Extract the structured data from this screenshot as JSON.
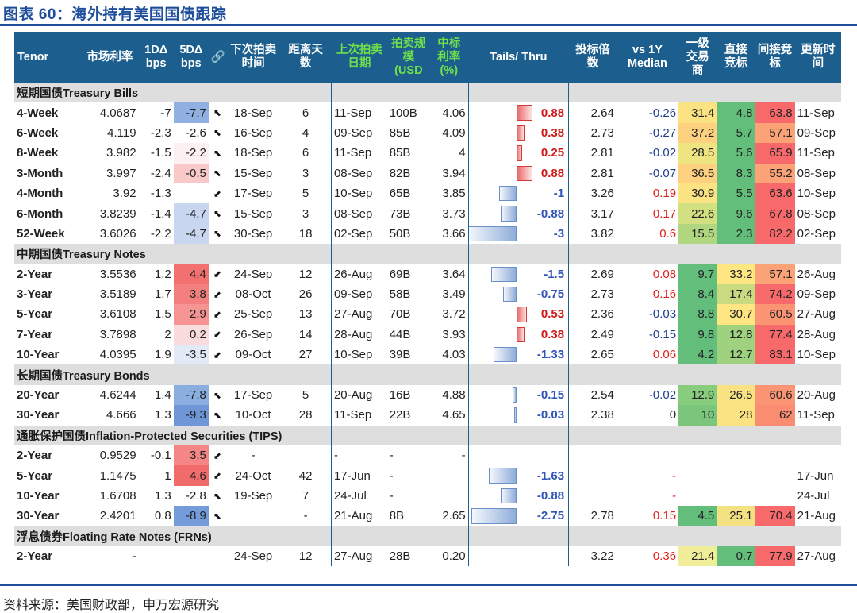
{
  "title": "图表 60：海外持有美国国债跟踪",
  "source": "资料来源：美国财政部，申万宏源研究",
  "headers": {
    "tenor": "Tenor",
    "rate": "市场利率",
    "d1": "1DΔ bps",
    "d5": "5DΔ bps",
    "link": "🔗",
    "next": "下次拍卖时间",
    "days": "距离天数",
    "last": "上次拍卖日期",
    "size": "拍卖规模(USD",
    "bid": "中标利率(%)",
    "tails": "Tails/ Thru",
    "btc": "投标倍数",
    "vs1y": "vs 1Y Median",
    "primary": "一级交易商",
    "direct": "直接竞标",
    "indirect": "间接竞标",
    "updated": "更新时间"
  },
  "sections": [
    {
      "label": "短期国债Treasury Bills",
      "rows": [
        {
          "tenor": "4-Week",
          "rate": "4.0687",
          "d1": "-7",
          "d5": "-7.7",
          "d5c": "#8fb0e0",
          "arrow": "⬉",
          "next": "18-Sep",
          "days": "6",
          "last": "11-Sep",
          "size": "100B",
          "bid": "4.06",
          "tail": "0.88",
          "tailv": 0.88,
          "btc": "2.64",
          "vs1y": "-0.26",
          "vs1yc": "blue",
          "p": "31.4",
          "pc": "#fbe283",
          "dr": "4.8",
          "dc": "#63be7b",
          "ind": "63.8",
          "ic": "#f8696b",
          "upd": "11-Sep"
        },
        {
          "tenor": "6-Week",
          "rate": "4.119",
          "d1": "-2.3",
          "d5": "-2.6",
          "d5c": "#ffffff",
          "arrow": "⬉",
          "next": "16-Sep",
          "days": "4",
          "last": "09-Sep",
          "size": "85B",
          "bid": "4.09",
          "tail": "0.38",
          "tailv": 0.38,
          "btc": "2.73",
          "vs1y": "-0.27",
          "vs1yc": "blue",
          "p": "37.2",
          "pc": "#fdd17f",
          "dr": "5.7",
          "dc": "#63be7b",
          "ind": "57.1",
          "ic": "#fba276",
          "upd": "09-Sep"
        },
        {
          "tenor": "8-Week",
          "rate": "3.982",
          "d1": "-1.5",
          "d5": "-2.2",
          "d5c": "#fdf0f0",
          "arrow": "⬉",
          "next": "18-Sep",
          "days": "6",
          "last": "11-Sep",
          "size": "85B",
          "bid": "4",
          "tail": "0.25",
          "tailv": 0.25,
          "btc": "2.81",
          "vs1y": "-0.02",
          "vs1yc": "blue",
          "p": "28.5",
          "pc": "#eee482",
          "dr": "5.6",
          "dc": "#63be7b",
          "ind": "65.9",
          "ic": "#f8696b",
          "upd": "11-Sep"
        },
        {
          "tenor": "3-Month",
          "rate": "3.997",
          "d1": "-2.4",
          "d5": "-0.5",
          "d5c": "#f9c9c9",
          "arrow": "⬉",
          "next": "15-Sep",
          "days": "3",
          "last": "08-Sep",
          "size": "82B",
          "bid": "3.94",
          "tail": "0.88",
          "tailv": 0.88,
          "btc": "2.81",
          "vs1y": "-0.07",
          "vs1yc": "blue",
          "p": "36.5",
          "pc": "#fdd17f",
          "dr": "8.3",
          "dc": "#63be7b",
          "ind": "55.2",
          "ic": "#fba276",
          "upd": "08-Sep"
        },
        {
          "tenor": "4-Month",
          "rate": "3.92",
          "d1": "-1.3",
          "d5": "",
          "d5c": "#ffffff",
          "arrow": "⬋",
          "next": "17-Sep",
          "days": "5",
          "last": "10-Sep",
          "size": "65B",
          "bid": "3.85",
          "tail": "-1",
          "tailv": -1,
          "btc": "3.26",
          "vs1y": "0.19",
          "vs1yc": "red",
          "p": "30.9",
          "pc": "#fbe283",
          "dr": "5.5",
          "dc": "#63be7b",
          "ind": "63.6",
          "ic": "#f8696b",
          "upd": "10-Sep"
        },
        {
          "tenor": "6-Month",
          "rate": "3.8239",
          "d1": "-1.4",
          "d5": "-4.7",
          "d5c": "#c8d7ef",
          "arrow": "⬉",
          "next": "15-Sep",
          "days": "3",
          "last": "08-Sep",
          "size": "73B",
          "bid": "3.73",
          "tail": "-0.88",
          "tailv": -0.88,
          "btc": "3.17",
          "vs1y": "0.17",
          "vs1yc": "red",
          "p": "22.6",
          "pc": "#d3e081",
          "dr": "9.6",
          "dc": "#63be7b",
          "ind": "67.8",
          "ic": "#f8696b",
          "upd": "08-Sep"
        },
        {
          "tenor": "52-Week",
          "rate": "3.6026",
          "d1": "-2.2",
          "d5": "-4.7",
          "d5c": "#c8d7ef",
          "arrow": "⬉",
          "next": "30-Sep",
          "days": "18",
          "last": "02-Sep",
          "size": "50B",
          "bid": "3.66",
          "tail": "-3",
          "tailv": -3,
          "btc": "3.82",
          "vs1y": "0.6",
          "vs1yc": "red",
          "p": "15.5",
          "pc": "#b0d67f",
          "dr": "2.3",
          "dc": "#63be7b",
          "ind": "82.2",
          "ic": "#f8696b",
          "upd": "02-Sep"
        }
      ]
    },
    {
      "label": "中期国债Treasury Notes",
      "rows": [
        {
          "tenor": "2-Year",
          "rate": "3.5536",
          "d1": "1.2",
          "d5": "4.4",
          "d5c": "#f27070",
          "arrow": "⬋",
          "next": "24-Sep",
          "days": "12",
          "last": "26-Aug",
          "size": "69B",
          "bid": "3.64",
          "tail": "-1.5",
          "tailv": -1.5,
          "btc": "2.69",
          "vs1y": "0.08",
          "vs1yc": "red",
          "p": "9.7",
          "pc": "#63be7b",
          "dr": "33.2",
          "dc": "#fee683",
          "ind": "57.1",
          "ic": "#fba276",
          "upd": "26-Aug"
        },
        {
          "tenor": "3-Year",
          "rate": "3.5189",
          "d1": "1.7",
          "d5": "3.8",
          "d5c": "#f47f7f",
          "arrow": "⬋",
          "next": "08-Oct",
          "days": "26",
          "last": "09-Sep",
          "size": "58B",
          "bid": "3.49",
          "tail": "-0.75",
          "tailv": -0.75,
          "btc": "2.73",
          "vs1y": "0.16",
          "vs1yc": "red",
          "p": "8.4",
          "pc": "#63be7b",
          "dr": "17.4",
          "dc": "#c9db80",
          "ind": "74.2",
          "ic": "#f8696b",
          "upd": "09-Sep"
        },
        {
          "tenor": "5-Year",
          "rate": "3.6108",
          "d1": "1.5",
          "d5": "2.9",
          "d5c": "#f69494",
          "arrow": "⬋",
          "next": "25-Sep",
          "days": "13",
          "last": "27-Aug",
          "size": "70B",
          "bid": "3.72",
          "tail": "0.53",
          "tailv": 0.53,
          "btc": "2.36",
          "vs1y": "-0.03",
          "vs1yc": "blue",
          "p": "8.8",
          "pc": "#63be7b",
          "dr": "30.7",
          "dc": "#fee683",
          "ind": "60.5",
          "ic": "#fa9473",
          "upd": "27-Aug"
        },
        {
          "tenor": "7-Year",
          "rate": "3.7898",
          "d1": "2",
          "d5": "0.2",
          "d5c": "#fbdcdc",
          "arrow": "⬋",
          "next": "26-Sep",
          "days": "14",
          "last": "28-Aug",
          "size": "44B",
          "bid": "3.93",
          "tail": "0.38",
          "tailv": 0.38,
          "btc": "2.49",
          "vs1y": "-0.15",
          "vs1yc": "blue",
          "p": "9.8",
          "pc": "#63be7b",
          "dr": "12.8",
          "dc": "#9fd27e",
          "ind": "77.4",
          "ic": "#f8696b",
          "upd": "28-Aug"
        },
        {
          "tenor": "10-Year",
          "rate": "4.0395",
          "d1": "1.9",
          "d5": "-3.5",
          "d5c": "#e3eaf7",
          "arrow": "⬋",
          "next": "09-Oct",
          "days": "27",
          "last": "10-Sep",
          "size": "39B",
          "bid": "4.03",
          "tail": "-1.33",
          "tailv": -1.33,
          "btc": "2.65",
          "vs1y": "0.06",
          "vs1yc": "red",
          "p": "4.2",
          "pc": "#63be7b",
          "dr": "12.7",
          "dc": "#9fd27e",
          "ind": "83.1",
          "ic": "#f8696b",
          "upd": "10-Sep"
        }
      ]
    },
    {
      "label": "长期国债Treasury Bonds",
      "rows": [
        {
          "tenor": "20-Year",
          "rate": "4.6244",
          "d1": "1.4",
          "d5": "-7.8",
          "d5c": "#8aaee0",
          "arrow": "⬉",
          "next": "17-Sep",
          "days": "5",
          "last": "20-Aug",
          "size": "16B",
          "bid": "4.88",
          "tail": "-0.15",
          "tailv": -0.15,
          "btc": "2.54",
          "vs1y": "-0.02",
          "vs1yc": "blue",
          "p": "12.9",
          "pc": "#88cc7d",
          "dr": "26.5",
          "dc": "#f8e282",
          "ind": "60.6",
          "ic": "#fa9473",
          "upd": "20-Aug"
        },
        {
          "tenor": "30-Year",
          "rate": "4.666",
          "d1": "1.3",
          "d5": "-9.3",
          "d5c": "#6f97d8",
          "arrow": "⬉",
          "next": "10-Oct",
          "days": "28",
          "last": "11-Sep",
          "size": "22B",
          "bid": "4.65",
          "tail": "-0.03",
          "tailv": -0.03,
          "btc": "2.38",
          "vs1y": "0",
          "vs1yc": "",
          "p": "10",
          "pc": "#7ac67c",
          "dr": "28",
          "dc": "#fbe383",
          "ind": "62",
          "ic": "#f98c71",
          "upd": "11-Sep"
        }
      ]
    },
    {
      "label": "通胀保护国债Inflation-Protected Securities (TIPS)",
      "rows": [
        {
          "tenor": "2-Year",
          "rate": "0.9529",
          "d1": "-0.1",
          "d5": "3.5",
          "d5c": "#f58686",
          "arrow": "⬋",
          "next": "-",
          "days": "",
          "last": "-",
          "size": "-",
          "bid": "-",
          "tail": "",
          "tailv": 0,
          "btc": "",
          "vs1y": "",
          "vs1yc": "",
          "p": "",
          "pc": "#ffffff",
          "dr": "",
          "dc": "#ffffff",
          "ind": "",
          "ic": "#ffffff",
          "upd": ""
        },
        {
          "tenor": "5-Year",
          "rate": "1.1475",
          "d1": "1",
          "d5": "4.6",
          "d5c": "#f26b6b",
          "arrow": "⬋",
          "next": "24-Oct",
          "days": "42",
          "last": "17-Jun",
          "size": "-",
          "bid": "",
          "tail": "-1.63",
          "tailv": -1.63,
          "btc": "",
          "vs1y": "-",
          "vs1yc": "red",
          "p": "",
          "pc": "#ffffff",
          "dr": "",
          "dc": "#ffffff",
          "ind": "",
          "ic": "#ffffff",
          "upd": "17-Jun"
        },
        {
          "tenor": "10-Year",
          "rate": "1.6708",
          "d1": "1.3",
          "d5": "-2.8",
          "d5c": "#ffffff",
          "arrow": "⬉",
          "next": "19-Sep",
          "days": "7",
          "last": "24-Jul",
          "size": "-",
          "bid": "",
          "tail": "-0.88",
          "tailv": -0.88,
          "btc": "",
          "vs1y": "-",
          "vs1yc": "red",
          "p": "",
          "pc": "#ffffff",
          "dr": "",
          "dc": "#ffffff",
          "ind": "",
          "ic": "#ffffff",
          "upd": "24-Jul"
        },
        {
          "tenor": "30-Year",
          "rate": "2.4201",
          "d1": "0.8",
          "d5": "-8.9",
          "d5c": "#759cda",
          "arrow": "⬉",
          "next": "",
          "days": "-",
          "last": "21-Aug",
          "size": "8B",
          "bid": "2.65",
          "tail": "-2.75",
          "tailv": -2.75,
          "btc": "2.78",
          "vs1y": "0.15",
          "vs1yc": "red",
          "p": "4.5",
          "pc": "#63be7b",
          "dr": "25.1",
          "dc": "#f4e182",
          "ind": "70.4",
          "ic": "#f8696b",
          "upd": "21-Aug"
        }
      ]
    },
    {
      "label": "浮息债券Floating Rate Notes (FRNs)",
      "rows": [
        {
          "tenor": "2-Year",
          "rate": "-",
          "d1": "",
          "d5": "",
          "d5c": "#ffffff",
          "arrow": "",
          "next": "24-Sep",
          "days": "12",
          "last": "27-Aug",
          "size": "28B",
          "bid": "0.20",
          "tail": "",
          "tailv": 0,
          "btc": "3.22",
          "vs1y": "0.36",
          "vs1yc": "red",
          "p": "21.4",
          "pc": "#f0ee98",
          "dr": "0.7",
          "dc": "#63be7b",
          "ind": "77.9",
          "ic": "#f8696b",
          "upd": "27-Aug"
        }
      ]
    }
  ],
  "colors": {
    "header_bg": "#1c5f8e",
    "title": "#1f4e9b",
    "section_bg": "#dedede"
  }
}
